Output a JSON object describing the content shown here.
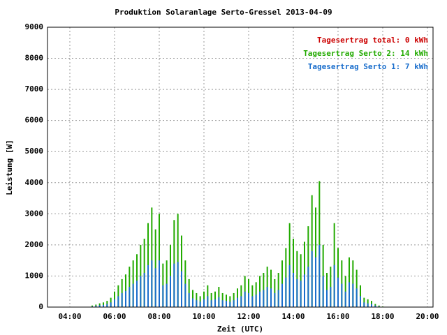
{
  "chart_data": {
    "type": "impulse",
    "title": "Produktion Solaranlage Serto-Gressel 2013-04-09",
    "xlabel": "Zeit (UTC)",
    "ylabel": "Leistung [W]",
    "x": [
      300,
      310,
      320,
      330,
      340,
      350,
      360,
      370,
      380,
      390,
      400,
      410,
      420,
      430,
      440,
      450,
      460,
      470,
      480,
      490,
      500,
      510,
      520,
      530,
      540,
      550,
      560,
      570,
      580,
      590,
      600,
      610,
      620,
      630,
      640,
      650,
      660,
      670,
      680,
      690,
      700,
      710,
      720,
      730,
      740,
      750,
      760,
      770,
      780,
      790,
      800,
      810,
      820,
      830,
      840,
      850,
      860,
      870,
      880,
      890,
      900,
      910,
      920,
      930,
      940,
      950,
      960,
      970,
      980,
      990,
      1000,
      1010,
      1020,
      1030,
      1040,
      1050,
      1060,
      1070,
      1080
    ],
    "series": [
      {
        "name": "Tagesertrag total: 0 kWh",
        "color": "#cc0000",
        "values": [
          0,
          0,
          0,
          0,
          0,
          0,
          0,
          0,
          0,
          0,
          0,
          0,
          0,
          0,
          0,
          0,
          0,
          0,
          0,
          0,
          0,
          0,
          0,
          0,
          0,
          0,
          0,
          0,
          0,
          0,
          0,
          0,
          0,
          0,
          0,
          0,
          0,
          0,
          0,
          0,
          0,
          0,
          0,
          0,
          0,
          0,
          0,
          0,
          0,
          0,
          0,
          0,
          0,
          0,
          0,
          0,
          0,
          0,
          0,
          0,
          0,
          0,
          0,
          0,
          0,
          0,
          0,
          0,
          0,
          0,
          0,
          0,
          0,
          0,
          0,
          0,
          0,
          0,
          0
        ]
      },
      {
        "name": "Tagesertrag Serto 2: 14 kWh",
        "color": "#22aa00",
        "values": [
          50,
          80,
          120,
          150,
          200,
          300,
          500,
          700,
          900,
          1050,
          1300,
          1500,
          1700,
          2000,
          2200,
          2700,
          3200,
          2500,
          3000,
          1400,
          1500,
          2000,
          2800,
          3000,
          2300,
          1500,
          900,
          550,
          450,
          350,
          500,
          700,
          450,
          500,
          650,
          450,
          400,
          350,
          450,
          600,
          700,
          1000,
          900,
          700,
          800,
          1000,
          1100,
          1300,
          1200,
          900,
          1100,
          1500,
          1900,
          2700,
          2200,
          1800,
          1700,
          2100,
          2600,
          3600,
          3200,
          4050,
          2000,
          1100,
          1300,
          2700,
          1900,
          1500,
          1000,
          1600,
          1500,
          1200,
          700,
          300,
          250,
          200,
          100,
          50,
          20
        ]
      },
      {
        "name": "Tagesertrag Serto 1: 7 kWh",
        "color": "#1a6ecc",
        "values": [
          20,
          40,
          60,
          70,
          100,
          150,
          250,
          350,
          450,
          520,
          650,
          750,
          850,
          1000,
          1100,
          1350,
          1500,
          1250,
          1500,
          700,
          750,
          1000,
          1400,
          1450,
          1150,
          750,
          450,
          280,
          220,
          180,
          250,
          350,
          220,
          250,
          320,
          220,
          200,
          170,
          220,
          300,
          350,
          500,
          450,
          350,
          400,
          500,
          550,
          650,
          600,
          450,
          550,
          750,
          950,
          1350,
          1100,
          900,
          850,
          1050,
          1300,
          1800,
          1600,
          2000,
          1000,
          550,
          650,
          1350,
          950,
          750,
          500,
          800,
          750,
          600,
          350,
          150,
          120,
          100,
          50,
          20,
          10
        ]
      }
    ],
    "xlim": [
      180,
      1215
    ],
    "xticks": [
      {
        "value": 240,
        "label": "04:00"
      },
      {
        "value": 360,
        "label": "06:00"
      },
      {
        "value": 480,
        "label": "08:00"
      },
      {
        "value": 600,
        "label": "10:00"
      },
      {
        "value": 720,
        "label": "12:00"
      },
      {
        "value": 840,
        "label": "14:00"
      },
      {
        "value": 960,
        "label": "16:00"
      },
      {
        "value": 1080,
        "label": "18:00"
      },
      {
        "value": 1200,
        "label": "20:00"
      }
    ],
    "ylim": [
      0,
      9000
    ],
    "yticks": [
      0,
      1000,
      2000,
      3000,
      4000,
      5000,
      6000,
      7000,
      8000,
      9000
    ],
    "grid": true,
    "legend": "top-right"
  }
}
